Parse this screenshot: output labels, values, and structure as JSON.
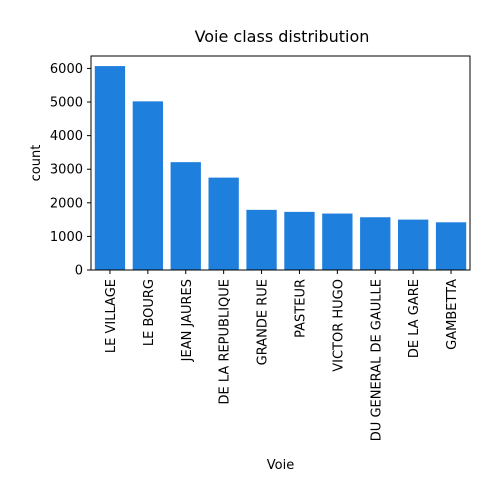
{
  "chart_data": {
    "type": "bar",
    "title": "Voie class distribution",
    "xlabel": "Voie",
    "ylabel": "count",
    "categories": [
      "LE VILLAGE",
      "LE BOURG",
      "JEAN JAURES",
      "DE LA REPUBLIQUE",
      "GRANDE RUE",
      "PASTEUR",
      "VICTOR HUGO",
      "DU GENERAL DE GAULLE",
      "DE LA GARE",
      "GAMBETTA"
    ],
    "values": [
      6070,
      5020,
      3210,
      2750,
      1790,
      1730,
      1680,
      1570,
      1500,
      1420
    ],
    "ylim": [
      0,
      6370
    ],
    "yticks": [
      0,
      1000,
      2000,
      3000,
      4000,
      5000,
      6000
    ],
    "bar_color": "#1f7fdd",
    "grid": false
  }
}
